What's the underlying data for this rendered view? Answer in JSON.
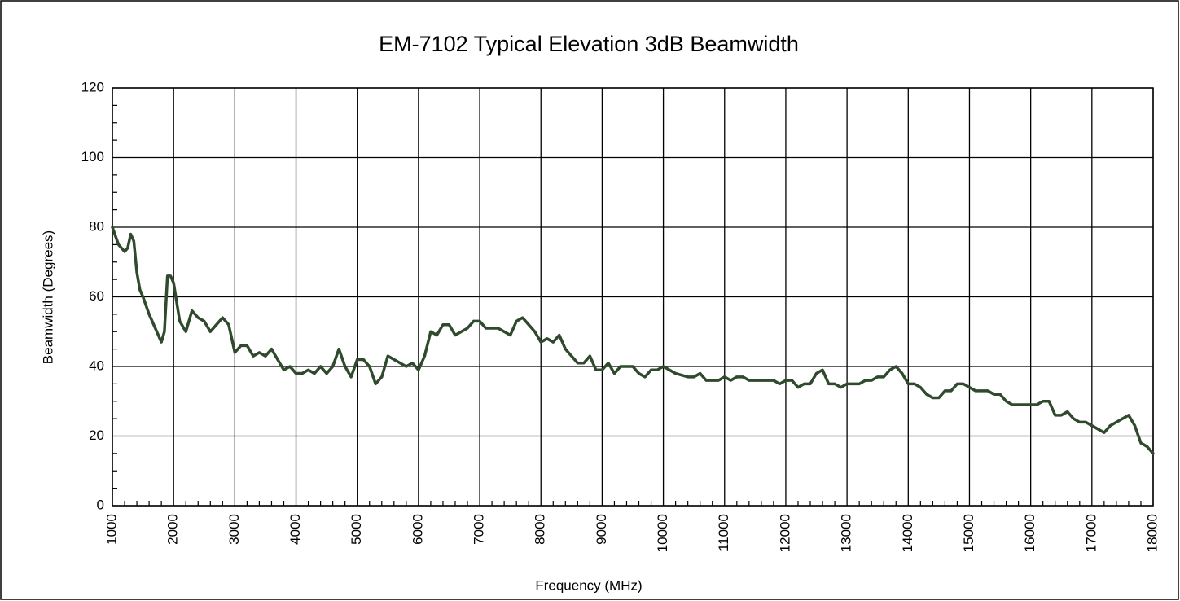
{
  "chart_data": {
    "type": "line",
    "title": "EM-7102 Typical Elevation 3dB Beamwidth",
    "x_label": "Frequency (MHz)",
    "y_label": "Beamwidth (Degrees)",
    "xlim": [
      1000,
      18000
    ],
    "xticks": [
      1000,
      2000,
      3000,
      4000,
      5000,
      6000,
      7000,
      8000,
      9000,
      10000,
      11000,
      12000,
      13000,
      14000,
      15000,
      16000,
      17000,
      18000
    ],
    "ylim": [
      0,
      120
    ],
    "yticks": [
      0,
      20,
      40,
      60,
      80,
      100,
      120
    ],
    "grid": true,
    "series": [
      {
        "name": "Beamwidth",
        "color": "#2f4a2c",
        "x": [
          1000,
          1100,
          1200,
          1250,
          1300,
          1350,
          1400,
          1450,
          1500,
          1600,
          1700,
          1800,
          1850,
          1900,
          1950,
          2000,
          2100,
          2200,
          2300,
          2400,
          2500,
          2600,
          2700,
          2800,
          2900,
          3000,
          3100,
          3200,
          3300,
          3400,
          3500,
          3600,
          3700,
          3800,
          3900,
          4000,
          4100,
          4200,
          4300,
          4400,
          4500,
          4600,
          4700,
          4800,
          4900,
          5000,
          5100,
          5200,
          5300,
          5400,
          5500,
          5600,
          5700,
          5800,
          5900,
          6000,
          6100,
          6200,
          6300,
          6400,
          6500,
          6600,
          6700,
          6800,
          6900,
          7000,
          7100,
          7200,
          7300,
          7400,
          7500,
          7600,
          7700,
          7800,
          7900,
          8000,
          8100,
          8200,
          8300,
          8400,
          8500,
          8600,
          8700,
          8800,
          8900,
          9000,
          9100,
          9200,
          9300,
          9400,
          9500,
          9600,
          9700,
          9800,
          9900,
          10000,
          10200,
          10400,
          10500,
          10600,
          10700,
          10900,
          11000,
          11100,
          11200,
          11300,
          11400,
          11600,
          11800,
          11900,
          12000,
          12100,
          12200,
          12300,
          12400,
          12500,
          12600,
          12700,
          12800,
          12900,
          13000,
          13100,
          13200,
          13300,
          13400,
          13500,
          13600,
          13700,
          13800,
          13900,
          14000,
          14100,
          14200,
          14300,
          14400,
          14500,
          14600,
          14700,
          14800,
          14900,
          15000,
          15100,
          15200,
          15300,
          15400,
          15500,
          15600,
          15700,
          15800,
          16000,
          16100,
          16200,
          16300,
          16400,
          16500,
          16600,
          16700,
          16800,
          16900,
          17000,
          17100,
          17200,
          17300,
          17400,
          17500,
          17600,
          17700,
          17800,
          17900,
          18000
        ],
        "values": [
          80,
          75,
          73,
          74,
          78,
          76,
          67,
          62,
          60,
          55,
          51,
          47,
          50,
          66,
          66,
          64,
          53,
          50,
          56,
          54,
          53,
          50,
          52,
          54,
          52,
          44,
          46,
          46,
          43,
          44,
          43,
          45,
          42,
          39,
          40,
          38,
          38,
          39,
          38,
          40,
          38,
          40,
          45,
          40,
          37,
          42,
          42,
          40,
          35,
          37,
          43,
          42,
          41,
          40,
          41,
          39,
          43,
          50,
          49,
          52,
          52,
          49,
          50,
          51,
          53,
          53,
          51,
          51,
          51,
          50,
          49,
          53,
          54,
          52,
          50,
          47,
          48,
          47,
          49,
          45,
          43,
          41,
          41,
          43,
          39,
          39,
          41,
          38,
          40,
          40,
          40,
          38,
          37,
          39,
          39,
          40,
          38,
          37,
          37,
          38,
          36,
          36,
          37,
          36,
          37,
          37,
          36,
          36,
          36,
          35,
          36,
          36,
          34,
          35,
          35,
          38,
          39,
          35,
          35,
          34,
          35,
          35,
          35,
          36,
          36,
          37,
          37,
          39,
          40,
          38,
          35,
          35,
          34,
          32,
          31,
          31,
          33,
          33,
          35,
          35,
          34,
          33,
          33,
          33,
          32,
          32,
          30,
          29,
          29,
          29,
          29,
          30,
          30,
          26,
          26,
          27,
          25,
          24,
          24,
          23,
          22,
          21,
          23,
          24,
          25,
          26,
          23,
          18,
          17,
          15
        ]
      }
    ]
  }
}
